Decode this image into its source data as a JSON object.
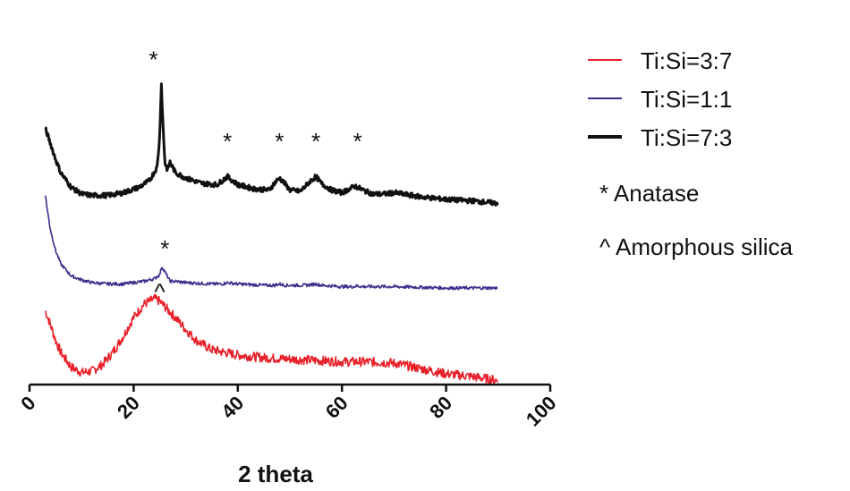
{
  "chart_data": {
    "type": "line",
    "xlabel": "2 theta",
    "ylabel": "",
    "xlim": [
      0,
      100
    ],
    "x_ticks": [
      "0",
      "20",
      "40",
      "60",
      "80",
      "100"
    ],
    "grid": false,
    "legend_position": "right",
    "series": [
      {
        "name": "Ti:Si=3:7",
        "color": "#e8202a",
        "x": [
          3,
          4,
          5,
          6,
          8,
          10,
          12,
          14,
          16,
          18,
          20,
          22,
          24,
          25,
          26,
          28,
          30,
          32,
          35,
          40,
          45,
          50,
          55,
          60,
          65,
          70,
          75,
          80,
          85,
          90
        ],
        "y": [
          0.55,
          0.45,
          0.33,
          0.24,
          0.13,
          0.09,
          0.1,
          0.15,
          0.24,
          0.36,
          0.5,
          0.6,
          0.64,
          0.62,
          0.58,
          0.5,
          0.41,
          0.33,
          0.26,
          0.22,
          0.2,
          0.19,
          0.18,
          0.17,
          0.17,
          0.16,
          0.12,
          0.08,
          0.06,
          0.03
        ]
      },
      {
        "name": "Ti:Si=1:1",
        "color": "#3a2f8c",
        "x": [
          3,
          3.5,
          4,
          5,
          6,
          8,
          10,
          12,
          15,
          18,
          20,
          22,
          24,
          25,
          25.4,
          26,
          27,
          28,
          30,
          35,
          37,
          38,
          40,
          45,
          47,
          48,
          49,
          53,
          54,
          55,
          56,
          60,
          62,
          63,
          64,
          70,
          80,
          90
        ],
        "y": [
          1.42,
          1.28,
          1.16,
          1.0,
          0.9,
          0.81,
          0.78,
          0.76,
          0.75,
          0.75,
          0.76,
          0.77,
          0.79,
          0.82,
          0.88,
          0.84,
          0.77,
          0.77,
          0.76,
          0.75,
          0.75,
          0.76,
          0.75,
          0.74,
          0.74,
          0.75,
          0.74,
          0.74,
          0.745,
          0.75,
          0.74,
          0.73,
          0.73,
          0.735,
          0.73,
          0.73,
          0.72,
          0.72
        ]
      },
      {
        "name": "Ti:Si=7:3",
        "color": "#111111",
        "x": [
          3,
          4,
          5,
          6,
          8,
          10,
          12,
          15,
          18,
          21,
          23,
          24.5,
          25,
          25.3,
          25.6,
          26,
          26.5,
          27,
          28,
          30,
          33,
          36,
          37,
          38,
          39,
          40,
          43,
          46,
          47,
          48,
          49,
          50,
          52,
          53,
          54,
          55,
          56,
          58,
          60,
          61,
          62.5,
          64,
          66,
          68,
          70,
          75,
          80,
          85,
          90
        ],
        "y": [
          1.91,
          1.8,
          1.68,
          1.58,
          1.47,
          1.42,
          1.41,
          1.41,
          1.43,
          1.47,
          1.52,
          1.62,
          1.85,
          2.26,
          1.95,
          1.65,
          1.6,
          1.66,
          1.58,
          1.54,
          1.5,
          1.49,
          1.52,
          1.55,
          1.52,
          1.49,
          1.46,
          1.45,
          1.5,
          1.54,
          1.5,
          1.45,
          1.44,
          1.48,
          1.52,
          1.55,
          1.5,
          1.45,
          1.43,
          1.45,
          1.48,
          1.45,
          1.42,
          1.42,
          1.43,
          1.4,
          1.38,
          1.37,
          1.35
        ]
      }
    ],
    "markers": [
      {
        "text": "*",
        "x": 23.8,
        "y": 2.43
      },
      {
        "text": "*",
        "x": 38,
        "y": 1.82
      },
      {
        "text": "*",
        "x": 48,
        "y": 1.82
      },
      {
        "text": "*",
        "x": 55,
        "y": 1.82
      },
      {
        "text": "*",
        "x": 63,
        "y": 1.82
      },
      {
        "text": "*",
        "x": 26,
        "y": 1.02
      },
      {
        "text": "^",
        "x": 25,
        "y": 0.7
      }
    ],
    "notes": [
      "* Anatase",
      "^ Amorphous silica"
    ]
  }
}
